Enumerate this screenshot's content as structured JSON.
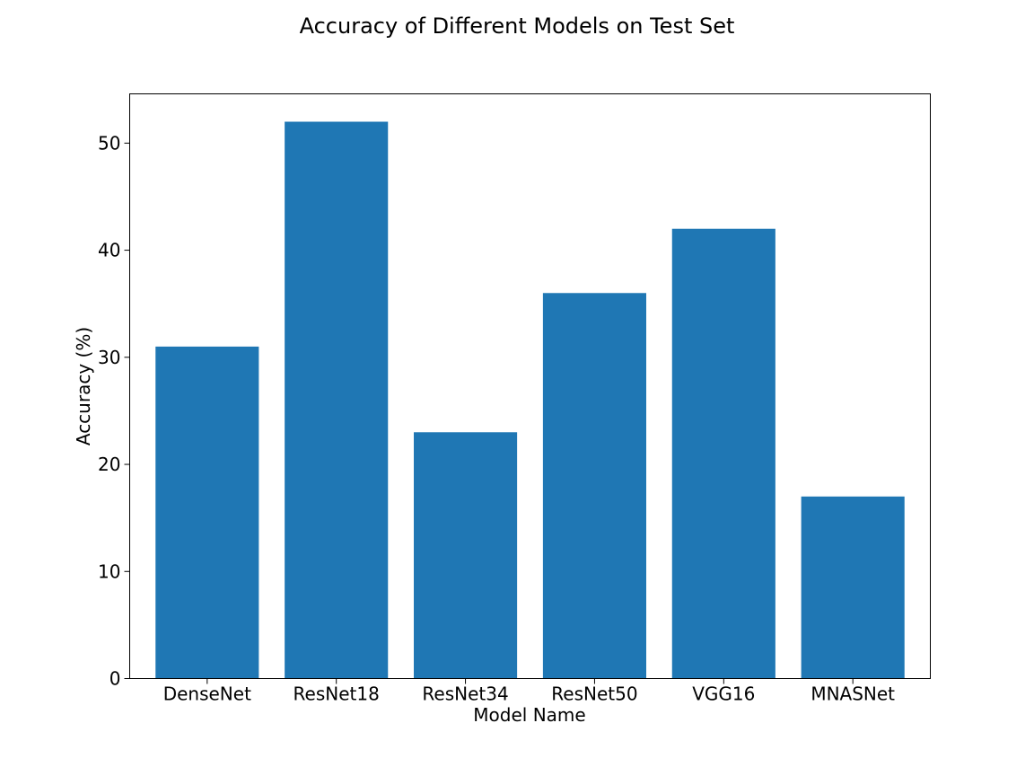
{
  "chart_data": {
    "type": "bar",
    "title": "Accuracy of Different Models on Test Set",
    "xlabel": "Model Name",
    "ylabel": "Accuracy (%)",
    "categories": [
      "DenseNet",
      "ResNet18",
      "ResNet34",
      "ResNet50",
      "VGG16",
      "MNASNet"
    ],
    "values": [
      31,
      52,
      23,
      36,
      42,
      17
    ],
    "ylim": [
      0,
      54.6
    ],
    "yticks": [
      0,
      10,
      20,
      30,
      40,
      50
    ],
    "grid": false,
    "bar_color": "#1f77b4"
  }
}
